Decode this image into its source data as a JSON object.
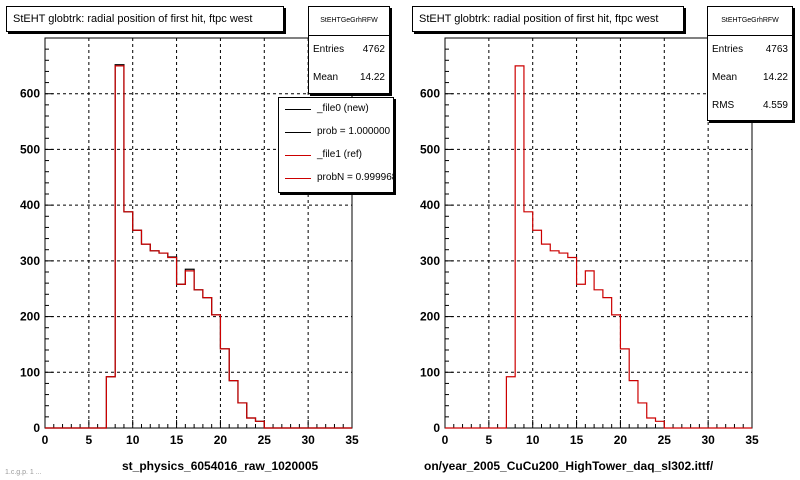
{
  "chart_data": [
    {
      "type": "histogram",
      "title": "StEHT globtrk: radial position of first hit, ftpc west",
      "xlim": [
        0,
        35
      ],
      "ylim": [
        0,
        700
      ],
      "x_ticks": [
        0,
        5,
        10,
        15,
        20,
        25,
        30,
        35
      ],
      "y_ticks": [
        0,
        100,
        200,
        300,
        400,
        500,
        600
      ],
      "grid": true,
      "bin_edges": [
        0,
        1,
        2,
        3,
        4,
        5,
        6,
        7,
        8,
        9,
        10,
        11,
        12,
        13,
        14,
        15,
        16,
        17,
        18,
        19,
        20,
        21,
        22,
        23,
        24,
        25,
        26,
        27,
        28,
        29,
        30,
        31,
        32,
        33,
        34,
        35
      ],
      "series": [
        {
          "name": "_file0 (new)",
          "color": "#000000",
          "values": [
            0,
            0,
            0,
            0,
            0,
            0,
            0,
            92,
            652,
            388,
            355,
            330,
            318,
            314,
            307,
            258,
            285,
            248,
            234,
            203,
            142,
            85,
            45,
            18,
            12,
            0,
            0,
            0,
            0,
            0,
            0,
            0,
            0,
            0,
            0
          ]
        },
        {
          "name": "_file1 (ref)",
          "color": "#cc0000",
          "values": [
            0,
            0,
            0,
            0,
            0,
            0,
            0,
            92,
            650,
            388,
            355,
            330,
            318,
            314,
            306,
            258,
            282,
            248,
            234,
            203,
            142,
            85,
            45,
            18,
            12,
            0,
            0,
            0,
            0,
            0,
            0,
            0,
            0,
            0,
            0
          ]
        }
      ],
      "stats": {
        "header": "StEHTGeGrhRFW",
        "rows": [
          {
            "label": "Entries",
            "value": "4762"
          },
          {
            "label": "Mean",
            "value": "14.22"
          }
        ]
      },
      "legend": [
        {
          "label": "_file0 (new)",
          "color": "#000000"
        },
        {
          "label": "prob = 1.000000",
          "color": "#000000"
        },
        {
          "label": "_file1 (ref)",
          "color": "#cc0000"
        },
        {
          "label": "probN = 0.999968",
          "color": "#cc0000"
        }
      ],
      "xlabel": "st_physics_6054016_raw_1020005"
    },
    {
      "type": "histogram",
      "title": "StEHT globtrk: radial position of first hit, ftpc west",
      "xlim": [
        0,
        35
      ],
      "ylim": [
        0,
        700
      ],
      "x_ticks": [
        0,
        5,
        10,
        15,
        20,
        25,
        30,
        35
      ],
      "y_ticks": [
        0,
        100,
        200,
        300,
        400,
        500,
        600
      ],
      "grid": true,
      "bin_edges": [
        0,
        1,
        2,
        3,
        4,
        5,
        6,
        7,
        8,
        9,
        10,
        11,
        12,
        13,
        14,
        15,
        16,
        17,
        18,
        19,
        20,
        21,
        22,
        23,
        24,
        25,
        26,
        27,
        28,
        29,
        30,
        31,
        32,
        33,
        34,
        35
      ],
      "series": [
        {
          "color": "#cc0000",
          "values": [
            0,
            0,
            0,
            0,
            0,
            0,
            0,
            92,
            650,
            388,
            355,
            330,
            318,
            314,
            306,
            258,
            282,
            248,
            234,
            203,
            142,
            85,
            45,
            18,
            12,
            0,
            0,
            0,
            0,
            0,
            0,
            0,
            0,
            0,
            0
          ]
        }
      ],
      "stats": {
        "header": "StEHTGeGrhRFW",
        "rows": [
          {
            "label": "Entries",
            "value": "4763"
          },
          {
            "label": "Mean",
            "value": "14.22"
          },
          {
            "label": "RMS",
            "value": "4.559"
          }
        ]
      },
      "legend": [],
      "xlabel": "on/year_2005_CuCu200_HighTower_daq_sl302.ittf/"
    }
  ],
  "footer_faint": "1.c.g.p. 1 ..."
}
